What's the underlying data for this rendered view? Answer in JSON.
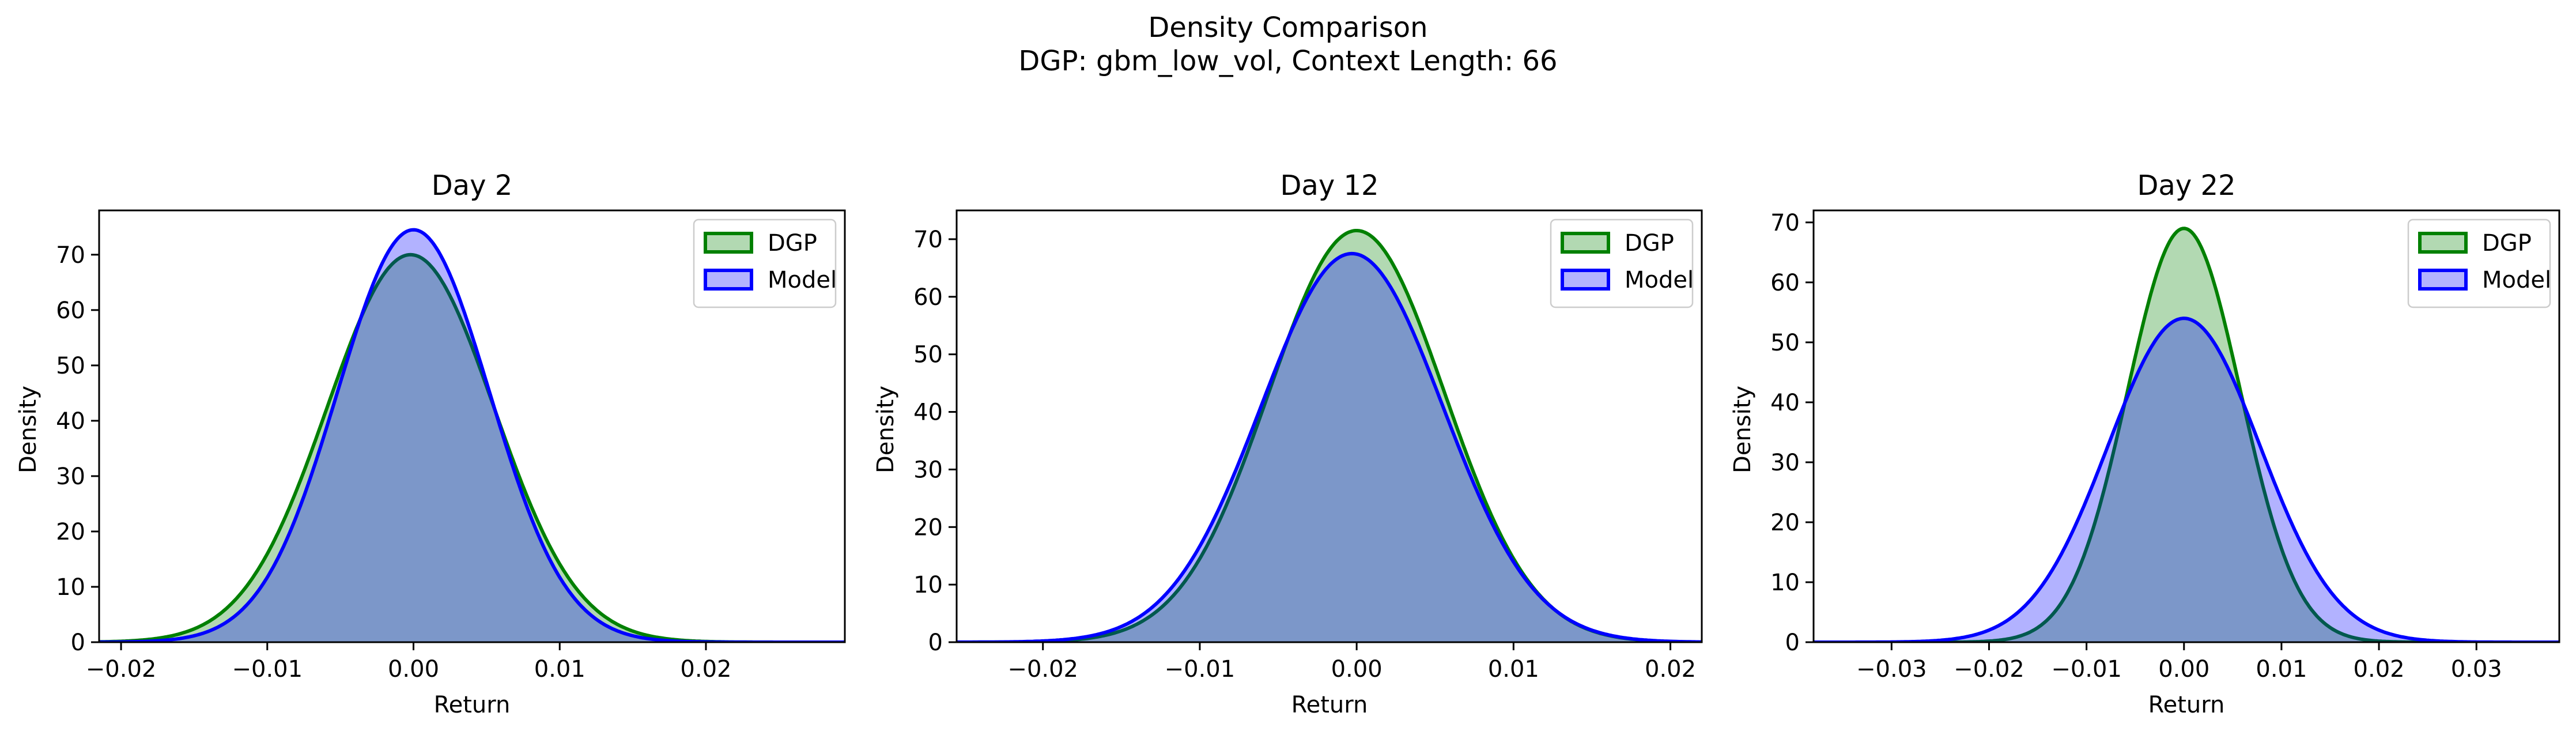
{
  "figure": {
    "suptitle_line1": "Density Comparison",
    "suptitle_line2": "DGP: gbm_low_vol, Context Length: 66"
  },
  "colors": {
    "dgp_line": "#008000",
    "dgp_fill": "#008000",
    "model_line": "#0000ff",
    "model_fill": "#0000ff"
  },
  "chart_data": [
    {
      "type": "area",
      "title": "Day 2",
      "xlabel": "Return",
      "ylabel": "Density",
      "xlim": [
        -0.0215,
        0.0295
      ],
      "ylim": [
        0,
        78
      ],
      "xticks": [
        -0.02,
        -0.01,
        0.0,
        0.01,
        0.02
      ],
      "xtick_labels": [
        "−0.02",
        "−0.01",
        "0.00",
        "0.01",
        "0.02"
      ],
      "yticks": [
        0,
        10,
        20,
        30,
        40,
        50,
        60,
        70
      ],
      "ytick_labels": [
        "0",
        "10",
        "20",
        "30",
        "40",
        "50",
        "60",
        "70"
      ],
      "legend": "top-right",
      "series": [
        {
          "name": "DGP",
          "mean": -0.0002,
          "sd": 0.0057,
          "peak": 70,
          "x_points": [
            -0.02,
            -0.01,
            0.0,
            0.01,
            0.02
          ],
          "y_points": [
            0.5,
            30,
            70,
            24,
            0.4
          ]
        },
        {
          "name": "Model",
          "mean": 0.0,
          "sd": 0.0052,
          "peak": 74.5,
          "x_points": [
            -0.02,
            -0.01,
            0.0,
            0.01,
            0.02
          ],
          "y_points": [
            0.6,
            26,
            74.5,
            26,
            1.5
          ]
        }
      ]
    },
    {
      "type": "area",
      "title": "Day 12",
      "xlabel": "Return",
      "ylabel": "Density",
      "xlim": [
        -0.0255,
        0.022
      ],
      "ylim": [
        0,
        75
      ],
      "xticks": [
        -0.02,
        -0.01,
        0.0,
        0.01,
        0.02
      ],
      "xtick_labels": [
        "−0.02",
        "−0.01",
        "0.00",
        "0.01",
        "0.02"
      ],
      "yticks": [
        0,
        10,
        20,
        30,
        40,
        50,
        60,
        70
      ],
      "ytick_labels": [
        "0",
        "10",
        "20",
        "30",
        "40",
        "50",
        "60",
        "70"
      ],
      "legend": "top-right",
      "series": [
        {
          "name": "DGP",
          "mean": 0.0,
          "sd": 0.0056,
          "peak": 71.5,
          "x_points": [
            -0.02,
            -0.01,
            0.0,
            0.01,
            0.02
          ],
          "y_points": [
            0.3,
            15,
            71.5,
            15,
            0.3
          ]
        },
        {
          "name": "Model",
          "mean": -0.0003,
          "sd": 0.0058,
          "peak": 67.5,
          "x_points": [
            -0.02,
            -0.01,
            0.0,
            0.01,
            0.02
          ],
          "y_points": [
            2,
            18,
            67,
            14,
            1.5
          ]
        }
      ]
    },
    {
      "type": "area",
      "title": "Day 22",
      "xlabel": "Return",
      "ylabel": "Density",
      "xlim": [
        -0.038,
        0.0385
      ],
      "ylim": [
        0,
        72
      ],
      "xticks": [
        -0.03,
        -0.02,
        -0.01,
        0.0,
        0.01,
        0.02,
        0.03
      ],
      "xtick_labels": [
        "−0.03",
        "−0.02",
        "−0.01",
        "0.00",
        "0.01",
        "0.02",
        "0.03"
      ],
      "yticks": [
        0,
        10,
        20,
        30,
        40,
        50,
        60,
        70
      ],
      "ytick_labels": [
        "0",
        "10",
        "20",
        "30",
        "40",
        "50",
        "60",
        "70"
      ],
      "legend": "top-right",
      "series": [
        {
          "name": "DGP",
          "mean": 0.0,
          "sd": 0.0058,
          "peak": 69,
          "x_points": [
            -0.02,
            -0.01,
            0.0,
            0.01,
            0.02
          ],
          "y_points": [
            0.2,
            16,
            69,
            16,
            0.2
          ]
        },
        {
          "name": "Model",
          "mean": 0.0,
          "sd": 0.0078,
          "peak": 54,
          "x_points": [
            -0.02,
            -0.01,
            0.0,
            0.01,
            0.02
          ],
          "y_points": [
            5,
            24,
            54,
            24,
            5
          ]
        }
      ]
    }
  ]
}
